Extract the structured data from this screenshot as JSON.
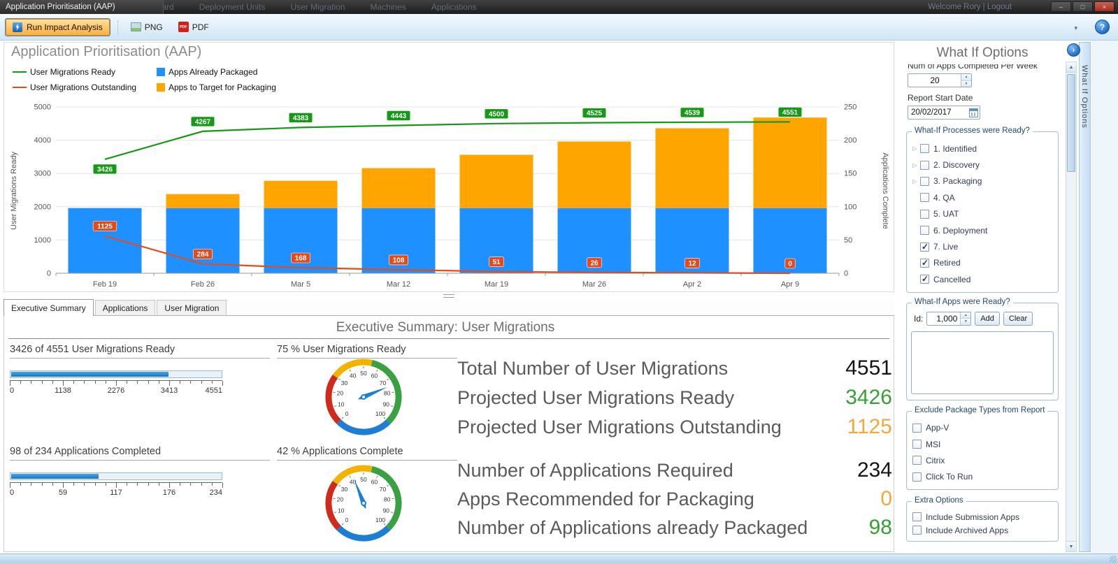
{
  "window": {
    "title": "Application Prioritisation (AAP)",
    "nav_items": [
      "Dashboard",
      "Deployment Units",
      "User Migration",
      "Machines",
      "Applications"
    ],
    "welcome": "Welcome Rory | Logout",
    "controls": {
      "minimize": "–",
      "maximize": "□",
      "close": "×"
    }
  },
  "toolbar": {
    "run_label": "Run Impact Analysis",
    "png_label": "PNG",
    "pdf_label": "PDF",
    "pdf_icon_text": "PDF",
    "help_label": "?",
    "overflow_icon": "▾"
  },
  "chart": {
    "title": "Application Prioritisation (AAP)",
    "left_axis_label": "User Migrations Ready",
    "right_axis_label": "Applications Complete",
    "legend": [
      {
        "label": "User Migrations Ready",
        "swatch": "line",
        "color": "#169916"
      },
      {
        "label": "Apps Already Packaged",
        "swatch": "square",
        "color": "#1e90ff"
      },
      {
        "label": "User Migrations Outstanding",
        "swatch": "line",
        "color": "#e64a19"
      },
      {
        "label": "Apps to Target for Packaging",
        "swatch": "square",
        "color": "#ffa500"
      }
    ]
  },
  "chart_data": {
    "type": "combo",
    "categories": [
      "Feb 19",
      "Feb 26",
      "Mar 5",
      "Mar 12",
      "Mar 19",
      "Mar 26",
      "Apr 2",
      "Apr 9"
    ],
    "left_axis": {
      "label": "User Migrations Ready",
      "min": 0,
      "max": 5000,
      "ticks": [
        0,
        1000,
        2000,
        3000,
        4000,
        5000
      ]
    },
    "right_axis": {
      "label": "Applications Complete",
      "min": 0,
      "max": 250,
      "ticks": [
        0,
        50,
        100,
        150,
        200,
        250
      ]
    },
    "series": [
      {
        "name": "Apps Already Packaged",
        "type": "bar",
        "axis": "right",
        "color": "#1e90ff",
        "values": [
          98,
          98,
          98,
          98,
          98,
          98,
          98,
          98
        ]
      },
      {
        "name": "Apps to Target for Packaging",
        "type": "bar",
        "axis": "right",
        "color": "#ffa500",
        "values": [
          0,
          21,
          41,
          60,
          80,
          100,
          120,
          136
        ]
      },
      {
        "name": "User Migrations Ready",
        "type": "line",
        "axis": "left",
        "color": "#169916",
        "first_label_below": true,
        "values": [
          3426,
          4267,
          4383,
          4443,
          4500,
          4525,
          4539,
          4551
        ]
      },
      {
        "name": "User Migrations Outstanding",
        "type": "line",
        "axis": "left",
        "color": "#e64a19",
        "first_label_below": false,
        "values": [
          1125,
          284,
          168,
          108,
          51,
          26,
          12,
          0
        ]
      }
    ],
    "grid": true,
    "legend_position": "top-left"
  },
  "tabs": [
    "Executive Summary",
    "Applications",
    "User Migration"
  ],
  "summary": {
    "title": "Executive Summary:  User Migrations",
    "progress1": {
      "label": "3426 of 4551 User Migrations Ready",
      "value": 3426,
      "max": 4551,
      "tick_labels": [
        "0",
        "1138",
        "2276",
        "3413",
        "4551"
      ]
    },
    "progress2": {
      "label": "98 of 234  Applications Completed",
      "value": 98,
      "max": 234,
      "tick_labels": [
        "0",
        "59",
        "117",
        "176",
        "234"
      ]
    },
    "gauge1": {
      "label": "75 % User Migrations Ready",
      "percent": 75,
      "min": 0,
      "max": 100,
      "step": 10
    },
    "gauge2": {
      "label": "42 % Applications Complete",
      "percent": 42,
      "min": 0,
      "max": 100,
      "step": 10
    },
    "stats": [
      {
        "label": "Total Number of User Migrations",
        "value": "4551",
        "color": "#141414"
      },
      {
        "label": "Projected User Migrations Ready",
        "value": "3426",
        "color": "#35a035"
      },
      {
        "label": "Projected User Migrations Outstanding",
        "value": "1125",
        "color": "#f2a93c"
      },
      {
        "label": "Number of Applications Required",
        "value": "234",
        "color": "#141414"
      },
      {
        "label": "Apps Recommended for Packaging",
        "value": "0",
        "color": "#f2a93c"
      },
      {
        "label": "Number of Applications already Packaged",
        "value": "98",
        "color": "#35a035"
      }
    ]
  },
  "whatif": {
    "title": "What If Options",
    "side_tab": "What  If Options",
    "collapse_icon": "›",
    "apps_per_week_label": "Num of Apps Completed Per Week",
    "apps_per_week_value": "20",
    "report_start_label": "Report Start Date",
    "report_start_value": "20/02/2017",
    "processes_title": "What-If Processes were Ready?",
    "processes": [
      {
        "label": "1. Identified",
        "checked": false,
        "expand": true
      },
      {
        "label": "2. Discovery",
        "checked": false,
        "expand": true
      },
      {
        "label": "3. Packaging",
        "checked": false,
        "expand": true
      },
      {
        "label": "4. QA",
        "checked": false,
        "expand": false
      },
      {
        "label": "5. UAT",
        "checked": false,
        "expand": false
      },
      {
        "label": "6. Deployment",
        "checked": false,
        "expand": false
      },
      {
        "label": "7. Live",
        "checked": true,
        "expand": false
      },
      {
        "label": "Retired",
        "checked": true,
        "expand": false
      },
      {
        "label": "Cancelled",
        "checked": true,
        "expand": false
      }
    ],
    "apps_ready_title": "What-If Apps were Ready?",
    "id_label": "Id:",
    "id_value": "1,000",
    "add_label": "Add",
    "clear_label": "Clear",
    "exclude_title": "Exclude Package Types from Report",
    "exclude": [
      {
        "label": "App-V",
        "checked": false
      },
      {
        "label": "MSI",
        "checked": false
      },
      {
        "label": "Citrix",
        "checked": false
      },
      {
        "label": "Click To Run",
        "checked": false
      }
    ],
    "extra_title": "Extra Options",
    "extra": [
      {
        "label": "Include Submission Apps",
        "checked": false
      },
      {
        "label": "Include Archived Apps",
        "checked": false
      }
    ]
  }
}
